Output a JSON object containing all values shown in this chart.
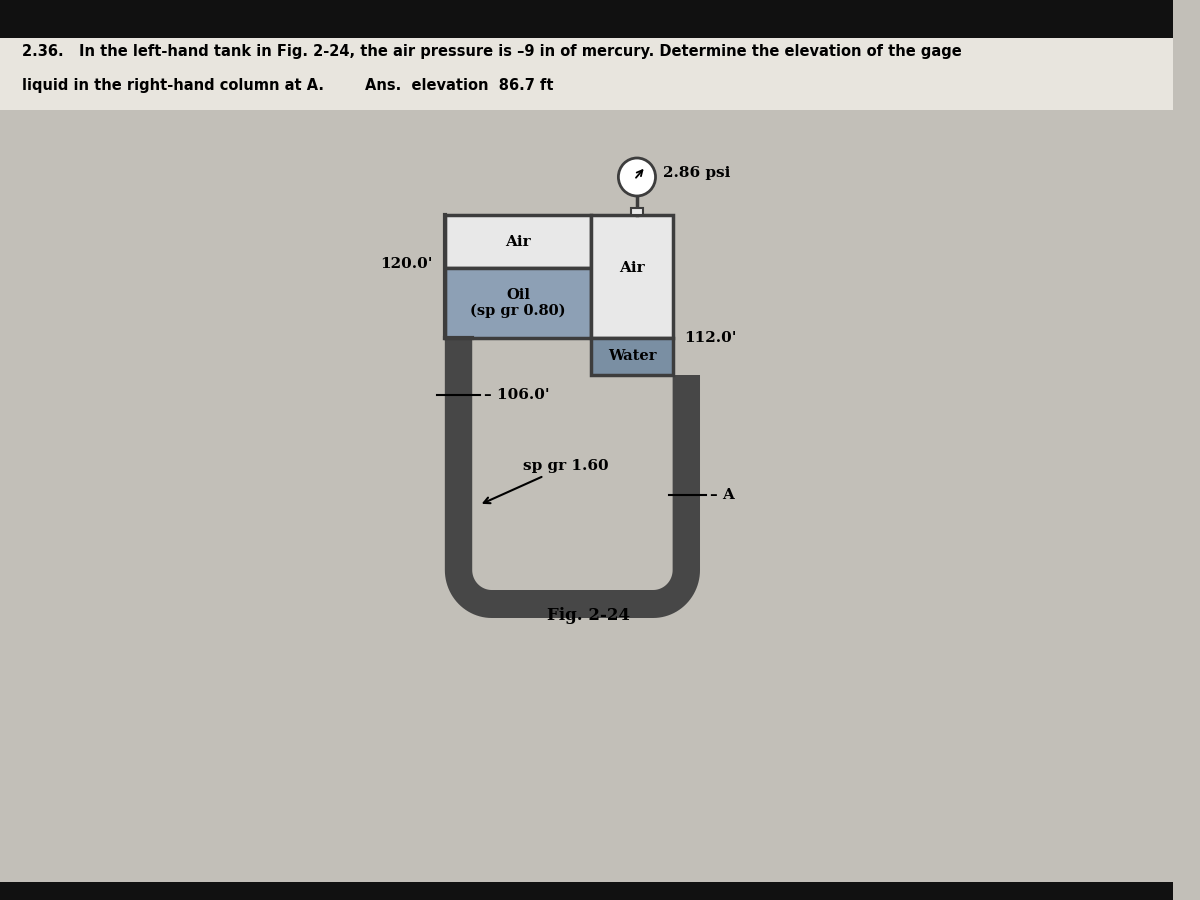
{
  "bg_top": "#1a1a1a",
  "bg_page": "#c2bfb8",
  "problem_line1": "2.36.   In the left-hand tank in Fig. 2-24, the air pressure is –9 in of mercury. Determine the elevation of the gage",
  "problem_line2": "liquid in the right-hand column at A.        Ans.  elevation  86.7 ft",
  "fig_label": "Fig. 2-24",
  "label_120": "120.0'",
  "label_112": "112.0'",
  "label_106": "– 106.0'",
  "label_A": "– A",
  "label_spgr160": "sp gr 1.60",
  "label_air_left": "Air",
  "label_oil": "Oil\n(sp gr 0.80)",
  "label_air_right": "Air",
  "label_water": "Water",
  "label_psi": "2.86 psi",
  "tank_color": "#3d3d3d",
  "pipe_fill": "#474747",
  "air_fill": "#e8e8e8",
  "oil_fill": "#8da0b5",
  "water_fill": "#7a8fa3",
  "tank_lw": 2.5
}
